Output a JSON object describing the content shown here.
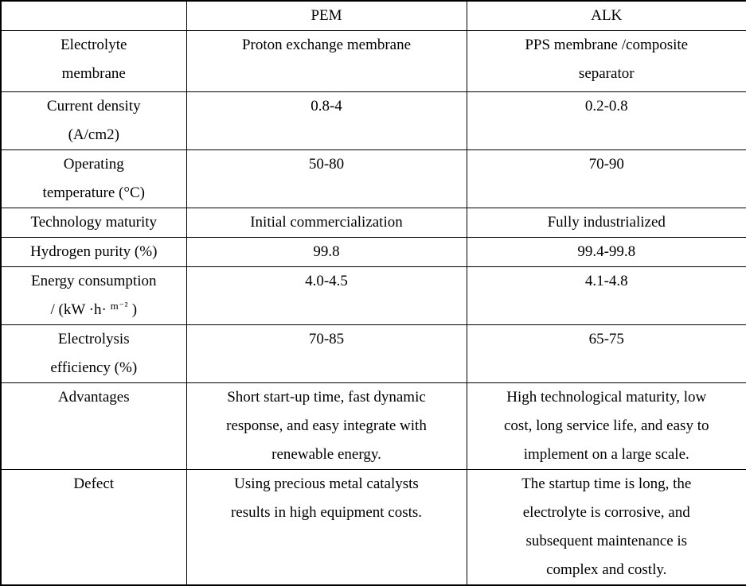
{
  "table": {
    "header": {
      "col_label": "",
      "col_pem": "PEM",
      "col_alk": "ALK"
    },
    "rows": [
      {
        "label_lines": [
          "Electrolyte",
          "membrane"
        ],
        "pem_lines": [
          "Proton exchange membrane"
        ],
        "alk_lines": [
          "PPS membrane /composite",
          "separator"
        ]
      },
      {
        "label_lines": [
          "Current density",
          "(A/cm2)"
        ],
        "pem_lines": [
          "0.8-4"
        ],
        "alk_lines": [
          "0.2-0.8"
        ]
      },
      {
        "label_lines": [
          "Operating",
          "temperature (°C)"
        ],
        "pem_lines": [
          "50-80"
        ],
        "alk_lines": [
          "70-90"
        ]
      },
      {
        "label_lines": [
          "Technology maturity"
        ],
        "pem_lines": [
          "Initial commercialization"
        ],
        "alk_lines": [
          "Fully industrialized"
        ]
      },
      {
        "label_lines": [
          "Hydrogen purity (%)"
        ],
        "pem_lines": [
          "99.8"
        ],
        "alk_lines": [
          "99.4-99.8"
        ]
      },
      {
        "label_line1": "Energy consumption",
        "label_unit_prefix": "/ (kW ·h· ",
        "label_unit_sup": "m⁻²",
        "label_unit_suffix": " )",
        "pem_lines": [
          "4.0-4.5"
        ],
        "alk_lines": [
          "4.1-4.8"
        ]
      },
      {
        "label_lines": [
          "Electrolysis",
          "efficiency (%)"
        ],
        "pem_lines": [
          "70-85"
        ],
        "alk_lines": [
          "65-75"
        ]
      },
      {
        "label_lines": [
          "Advantages"
        ],
        "pem_lines": [
          "Short start-up time, fast dynamic",
          "response, and easy integrate with",
          "renewable energy."
        ],
        "alk_lines": [
          "High technological maturity, low",
          "cost, long service life, and easy to",
          "implement on a large scale."
        ]
      },
      {
        "label_lines": [
          "Defect"
        ],
        "pem_lines": [
          "Using precious metal catalysts",
          "results in high equipment costs."
        ],
        "alk_lines": [
          "The startup time is long, the",
          "electrolyte is corrosive, and",
          "subsequent maintenance is",
          "complex and costly."
        ]
      }
    ]
  }
}
